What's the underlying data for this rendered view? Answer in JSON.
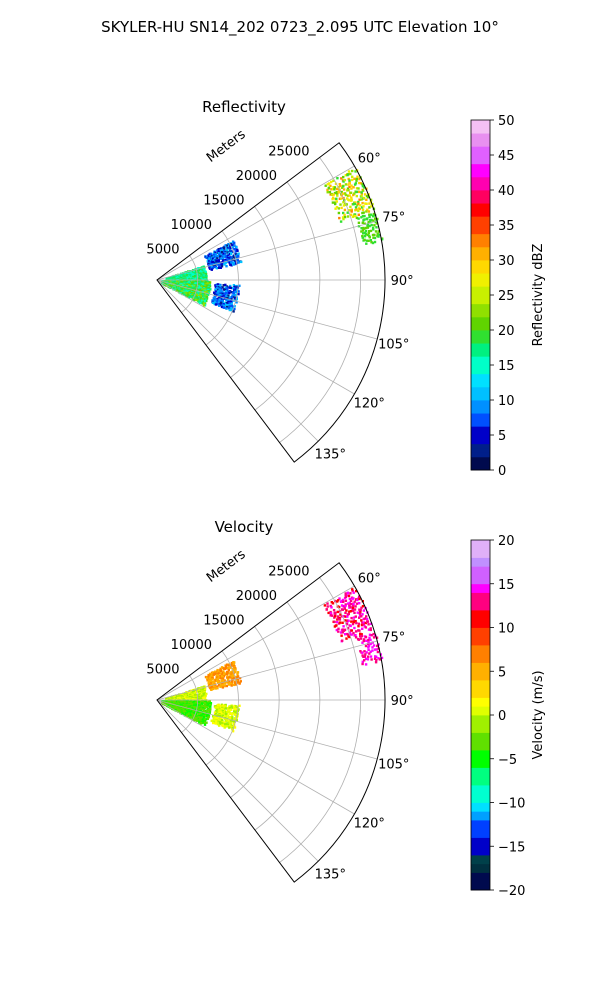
{
  "figure": {
    "title": "SKYLER-HU  SN14_202  0723_2.095 UTC Elevation 10°"
  },
  "chart_data": [
    {
      "type": "heatmap",
      "title": "Reflectivity",
      "projection": "polar-sector",
      "theta_range_deg": [
        53,
        143
      ],
      "r_range_m": [
        0,
        28000
      ],
      "r_ticks": [
        5000,
        10000,
        15000,
        20000,
        25000
      ],
      "r_tick_labels": [
        "5000",
        "10000",
        "15000",
        "20000",
        "25000"
      ],
      "r_axis_label": "Meters",
      "theta_ticks": [
        60,
        75,
        90,
        105,
        120,
        135
      ],
      "theta_tick_labels": [
        "60°",
        "75°",
        "90°",
        "105°",
        "120°",
        "135°"
      ],
      "grid": true,
      "colorbar": {
        "label": "Reflectivity dBZ",
        "range": [
          0,
          50
        ],
        "ticks": [
          0,
          5,
          10,
          15,
          20,
          25,
          30,
          35,
          40,
          45,
          50
        ],
        "tick_labels": [
          "0",
          "5",
          "10",
          "15",
          "20",
          "25",
          "30",
          "35",
          "40",
          "45",
          "50"
        ],
        "colormap": "NWSRef"
      },
      "echo_regions": [
        {
          "theta_range_deg": [
            60,
            72
          ],
          "r_range_m": [
            23500,
            28000
          ],
          "value_range": [
            18,
            33
          ]
        },
        {
          "theta_range_deg": [
            72,
            80
          ],
          "r_range_m": [
            25500,
            28000
          ],
          "value_range": [
            18,
            22
          ]
        },
        {
          "theta_range_deg": [
            62,
            78
          ],
          "r_range_m": [
            6500,
            10500
          ],
          "value_range": [
            3,
            12
          ]
        },
        {
          "theta_range_deg": [
            93,
            112
          ],
          "r_range_m": [
            7000,
            10000
          ],
          "value_range": [
            3,
            12
          ]
        },
        {
          "theta_range_deg": [
            72,
            90
          ],
          "r_range_m": [
            1000,
            6000
          ],
          "value_range": [
            14,
            20
          ]
        },
        {
          "theta_range_deg": [
            90,
            118
          ],
          "r_range_m": [
            500,
            6500
          ],
          "value_range": [
            14,
            24
          ]
        }
      ]
    },
    {
      "type": "heatmap",
      "title": "Velocity",
      "projection": "polar-sector",
      "theta_range_deg": [
        53,
        143
      ],
      "r_range_m": [
        0,
        28000
      ],
      "r_ticks": [
        5000,
        10000,
        15000,
        20000,
        25000
      ],
      "r_tick_labels": [
        "5000",
        "10000",
        "15000",
        "20000",
        "25000"
      ],
      "r_axis_label": "Meters",
      "theta_ticks": [
        60,
        75,
        90,
        105,
        120,
        135
      ],
      "theta_tick_labels": [
        "60°",
        "75°",
        "90°",
        "105°",
        "120°",
        "135°"
      ],
      "grid": true,
      "colorbar": {
        "label": "Velocity (m/s)",
        "range": [
          -20,
          20
        ],
        "ticks": [
          -20,
          -15,
          -10,
          -5,
          0,
          5,
          10,
          15,
          20
        ],
        "tick_labels": [
          "−20",
          "−15",
          "−10",
          "−5",
          "0",
          "5",
          "10",
          "15",
          "20"
        ],
        "colormap": "NWSVel"
      },
      "echo_regions": [
        {
          "theta_range_deg": [
            60,
            72
          ],
          "r_range_m": [
            23500,
            28000
          ],
          "value_range": [
            11,
            15
          ]
        },
        {
          "theta_range_deg": [
            72,
            80
          ],
          "r_range_m": [
            25500,
            28000
          ],
          "value_range": [
            13,
            15
          ]
        },
        {
          "theta_range_deg": [
            62,
            78
          ],
          "r_range_m": [
            6500,
            10500
          ],
          "value_range": [
            4,
            8
          ]
        },
        {
          "theta_range_deg": [
            93,
            112
          ],
          "r_range_m": [
            7000,
            10000
          ],
          "value_range": [
            -1,
            2
          ]
        },
        {
          "theta_range_deg": [
            72,
            90
          ],
          "r_range_m": [
            1000,
            6000
          ],
          "value_range": [
            -2,
            2
          ]
        },
        {
          "theta_range_deg": [
            90,
            118
          ],
          "r_range_m": [
            500,
            6500
          ],
          "value_range": [
            -5,
            -2
          ]
        }
      ]
    }
  ]
}
